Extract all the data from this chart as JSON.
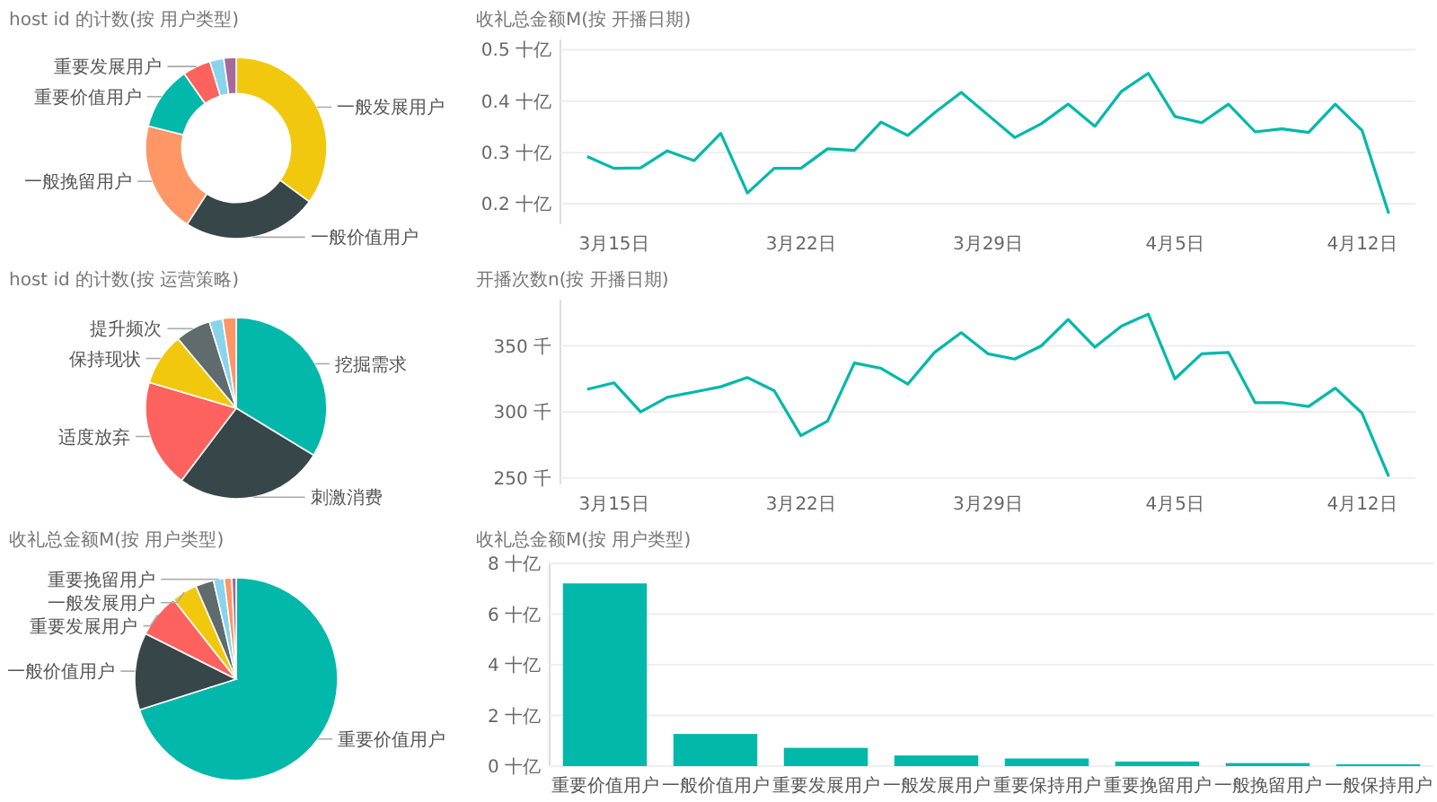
{
  "chart_data": [
    {
      "type": "donut",
      "title": "host id 的计数(按 用户类型)",
      "categories": [
        "一般发展用户",
        "一般价值用户",
        "一般挽留用户",
        "重要价值用户",
        "重要发展用户",
        null,
        null
      ],
      "values": [
        35.1,
        24,
        19.8,
        11.4,
        5,
        2.5,
        2.2
      ],
      "colors": [
        "#f2c80f",
        "#374649",
        "#fe9666",
        "#01b8aa",
        "#fd625e",
        "#8ad4eb",
        "#a66999"
      ]
    },
    {
      "type": "line",
      "title": "收礼总金额M(按 开播日期)",
      "x": [
        "--03-14",
        "--03-15",
        "--03-16",
        "--03-17",
        "--03-18",
        "--03-19",
        "--03-20",
        "--03-21",
        "--03-22",
        "--03-23",
        "--03-24",
        "--03-25",
        "--03-26",
        "--03-27",
        "--03-28",
        "--03-29",
        "--03-30",
        "--03-31",
        "--04-01",
        "--04-02",
        "--04-03",
        "--04-04",
        "--04-05",
        "--04-06",
        "--04-07",
        "--04-08",
        "--04-09",
        "--04-10",
        "--04-11",
        "--04-12",
        "--04-13"
      ],
      "series": [
        {
          "color": "#01b8aa",
          "values": [
            0.292,
            0.269,
            0.27,
            0.303,
            0.284,
            0.337,
            0.221,
            0.269,
            0.269,
            0.307,
            0.304,
            0.359,
            0.333,
            0.377,
            0.417,
            0.373,
            0.329,
            0.356,
            0.394,
            0.351,
            0.419,
            0.454,
            0.37,
            0.358,
            0.394,
            0.34,
            0.346,
            0.339,
            0.394,
            0.343,
            0.181
          ]
        }
      ],
      "xlim": [
        "--03-13",
        "--04-14"
      ],
      "xticks": [
        {
          "value": "--03-15",
          "label": "3月15日"
        },
        {
          "value": "--03-22",
          "label": "3月22日"
        },
        {
          "value": "--03-29",
          "label": "3月29日"
        },
        {
          "value": "--04-05",
          "label": "4月5日"
        },
        {
          "value": "--04-12",
          "label": "4月12日"
        }
      ],
      "ylim": [
        0.16,
        0.52
      ],
      "yticks": [
        {
          "value": 0.2,
          "label": "0.2 十亿"
        },
        {
          "value": 0.3,
          "label": "0.3 十亿"
        },
        {
          "value": 0.4,
          "label": "0.4 十亿"
        },
        {
          "value": 0.5,
          "label": "0.5 十亿"
        }
      ],
      "grid": "y",
      "marker": "none",
      "line_style": "solid"
    },
    {
      "type": "pie",
      "title": "host id 的计数(按 运营策略)",
      "categories": [
        "挖掘需求",
        "刺激消费",
        "适度放弃",
        "保持现状",
        "提升频次",
        null,
        null
      ],
      "values": [
        33.7,
        26.6,
        19.3,
        9.3,
        6.3,
        2.4,
        2.4
      ],
      "colors": [
        "#01b8aa",
        "#374649",
        "#fd625e",
        "#f2c80f",
        "#5f6b6d",
        "#8ad4eb",
        "#fe9666"
      ]
    },
    {
      "type": "line",
      "title": "开播次数n(按 开播日期)",
      "x": [
        "--03-14",
        "--03-15",
        "--03-16",
        "--03-17",
        "--03-18",
        "--03-19",
        "--03-20",
        "--03-21",
        "--03-22",
        "--03-23",
        "--03-24",
        "--03-25",
        "--03-26",
        "--03-27",
        "--03-28",
        "--03-29",
        "--03-30",
        "--03-31",
        "--04-01",
        "--04-02",
        "--04-03",
        "--04-04",
        "--04-05",
        "--04-06",
        "--04-07",
        "--04-08",
        "--04-09",
        "--04-10",
        "--04-11",
        "--04-12",
        "--04-13"
      ],
      "series": [
        {
          "color": "#01b8aa",
          "values": [
            317,
            322,
            300,
            311,
            315,
            319,
            326,
            316,
            282,
            293,
            337,
            333,
            321,
            345,
            360,
            344,
            340,
            350,
            370,
            349,
            365,
            374,
            325,
            344,
            345,
            307,
            307,
            304,
            318,
            299,
            251
          ]
        }
      ],
      "xlim": [
        "--03-13",
        "--04-14"
      ],
      "xticks": [
        {
          "value": "--03-15",
          "label": "3月15日"
        },
        {
          "value": "--03-22",
          "label": "3月22日"
        },
        {
          "value": "--03-29",
          "label": "3月29日"
        },
        {
          "value": "--04-05",
          "label": "4月5日"
        },
        {
          "value": "--04-12",
          "label": "4月12日"
        }
      ],
      "ylim": [
        245,
        385
      ],
      "yticks": [
        {
          "value": 250,
          "label": "250 千"
        },
        {
          "value": 300,
          "label": "300 千"
        },
        {
          "value": 350,
          "label": "350 千"
        }
      ],
      "grid": "y",
      "marker": "none",
      "line_style": "solid"
    },
    {
      "type": "pie",
      "title": "收礼总金额M(按 用户类型)",
      "categories": [
        "重要价值用户",
        "一般价值用户",
        "重要发展用户",
        "一般发展用户",
        null,
        "重要挽留用户",
        null,
        null
      ],
      "values": [
        70.1,
        12.3,
        7.0,
        4.1,
        2.9,
        1.7,
        1.2,
        0.7
      ],
      "colors": [
        "#01b8aa",
        "#374649",
        "#fd625e",
        "#f2c80f",
        "#5f6b6d",
        "#8ad4eb",
        "#fe9666",
        "#a66999"
      ]
    },
    {
      "type": "bar",
      "title": "收礼总金额M(按 用户类型)",
      "categories": [
        "重要价值用户",
        "一般价值用户",
        "重要发展用户",
        "一般发展用户",
        "重要保持用户",
        "重要挽留用户",
        "一般挽留用户",
        "一般保持用户"
      ],
      "values": [
        7.21,
        1.27,
        0.72,
        0.42,
        0.3,
        0.18,
        0.12,
        0.07
      ],
      "color": "#01b8aa",
      "ylim": [
        0,
        8
      ],
      "yticks": [
        {
          "value": 0,
          "label": "0 十亿"
        },
        {
          "value": 2,
          "label": "2 十亿"
        },
        {
          "value": 4,
          "label": "4 十亿"
        },
        {
          "value": 6,
          "label": "6 十亿"
        },
        {
          "value": 8,
          "label": "8 十亿"
        }
      ],
      "grid": "y"
    }
  ]
}
